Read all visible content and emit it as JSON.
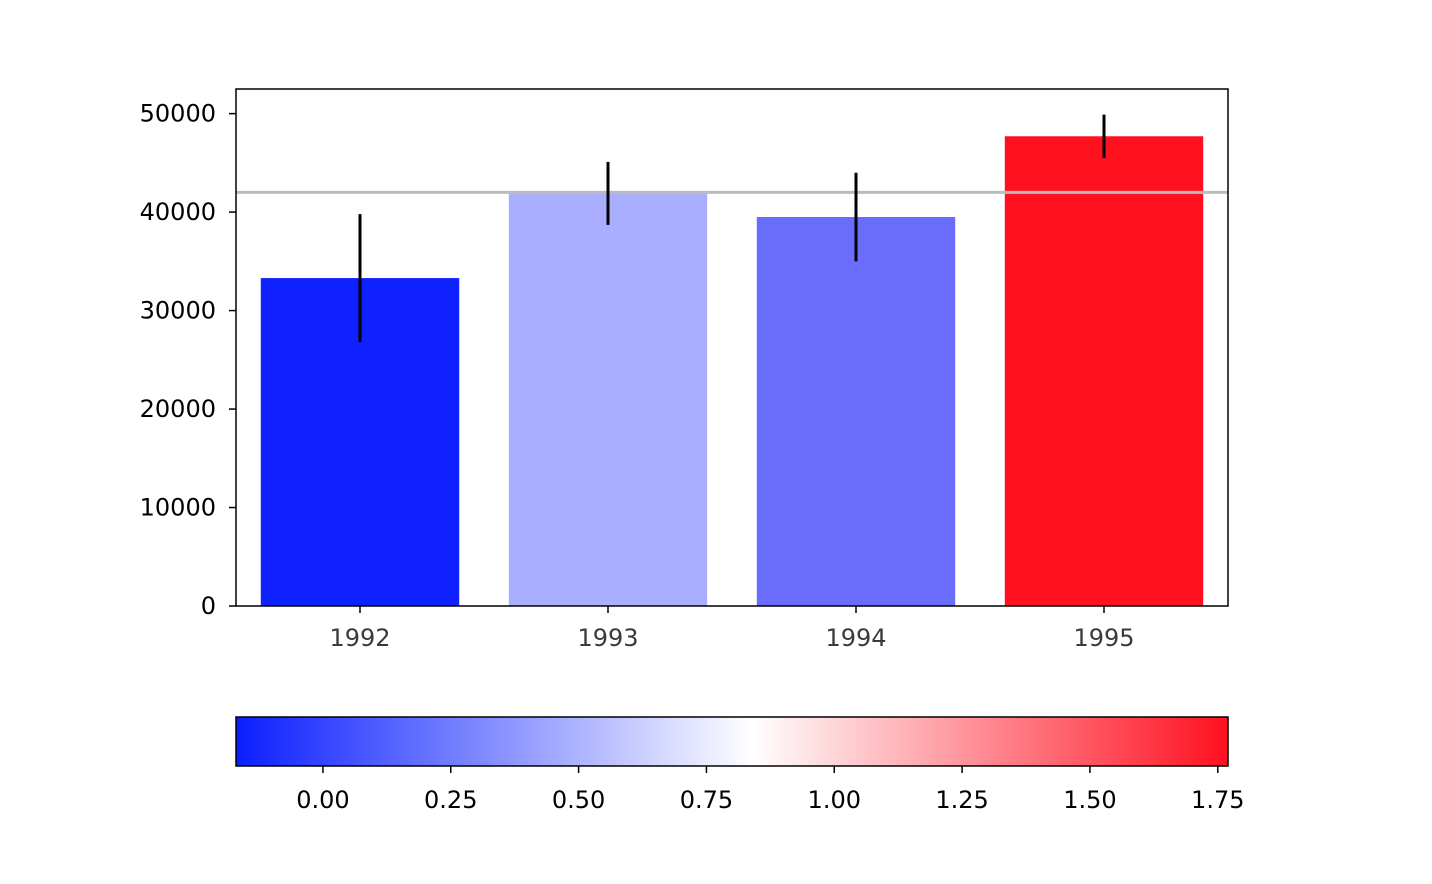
{
  "chart_data": {
    "type": "bar",
    "title": "",
    "xlabel": "",
    "ylabel": "",
    "categories": [
      "1992",
      "1993",
      "1994",
      "1995"
    ],
    "values": [
      33300,
      41900,
      39500,
      47700
    ],
    "errors": [
      6500,
      3200,
      4500,
      2200
    ],
    "bar_colors": [
      "#0f21ff",
      "#aaaeff",
      "#6a6cfb",
      "#fe101f"
    ],
    "error_bar_color": "#000000",
    "ylim": [
      0,
      52500
    ],
    "yticks": [
      0,
      10000,
      20000,
      30000,
      40000,
      50000
    ],
    "ytick_labels": [
      "0",
      "10000",
      "20000",
      "30000",
      "40000",
      "50000"
    ],
    "reference_line": {
      "value": 42000,
      "color": "#bbbbbb"
    },
    "grid": false,
    "colorbar": {
      "orientation": "horizontal",
      "colormap": [
        "#0b1fff",
        "#ffffff",
        "#ff1020"
      ],
      "range": [
        -0.17,
        1.77
      ],
      "ticks": [
        0,
        0.25,
        0.5,
        0.75,
        1,
        1.25,
        1.5,
        1.75
      ],
      "tick_labels": [
        "0.00",
        "0.25",
        "0.50",
        "0.75",
        "1.00",
        "1.25",
        "1.50",
        "1.75"
      ]
    }
  }
}
